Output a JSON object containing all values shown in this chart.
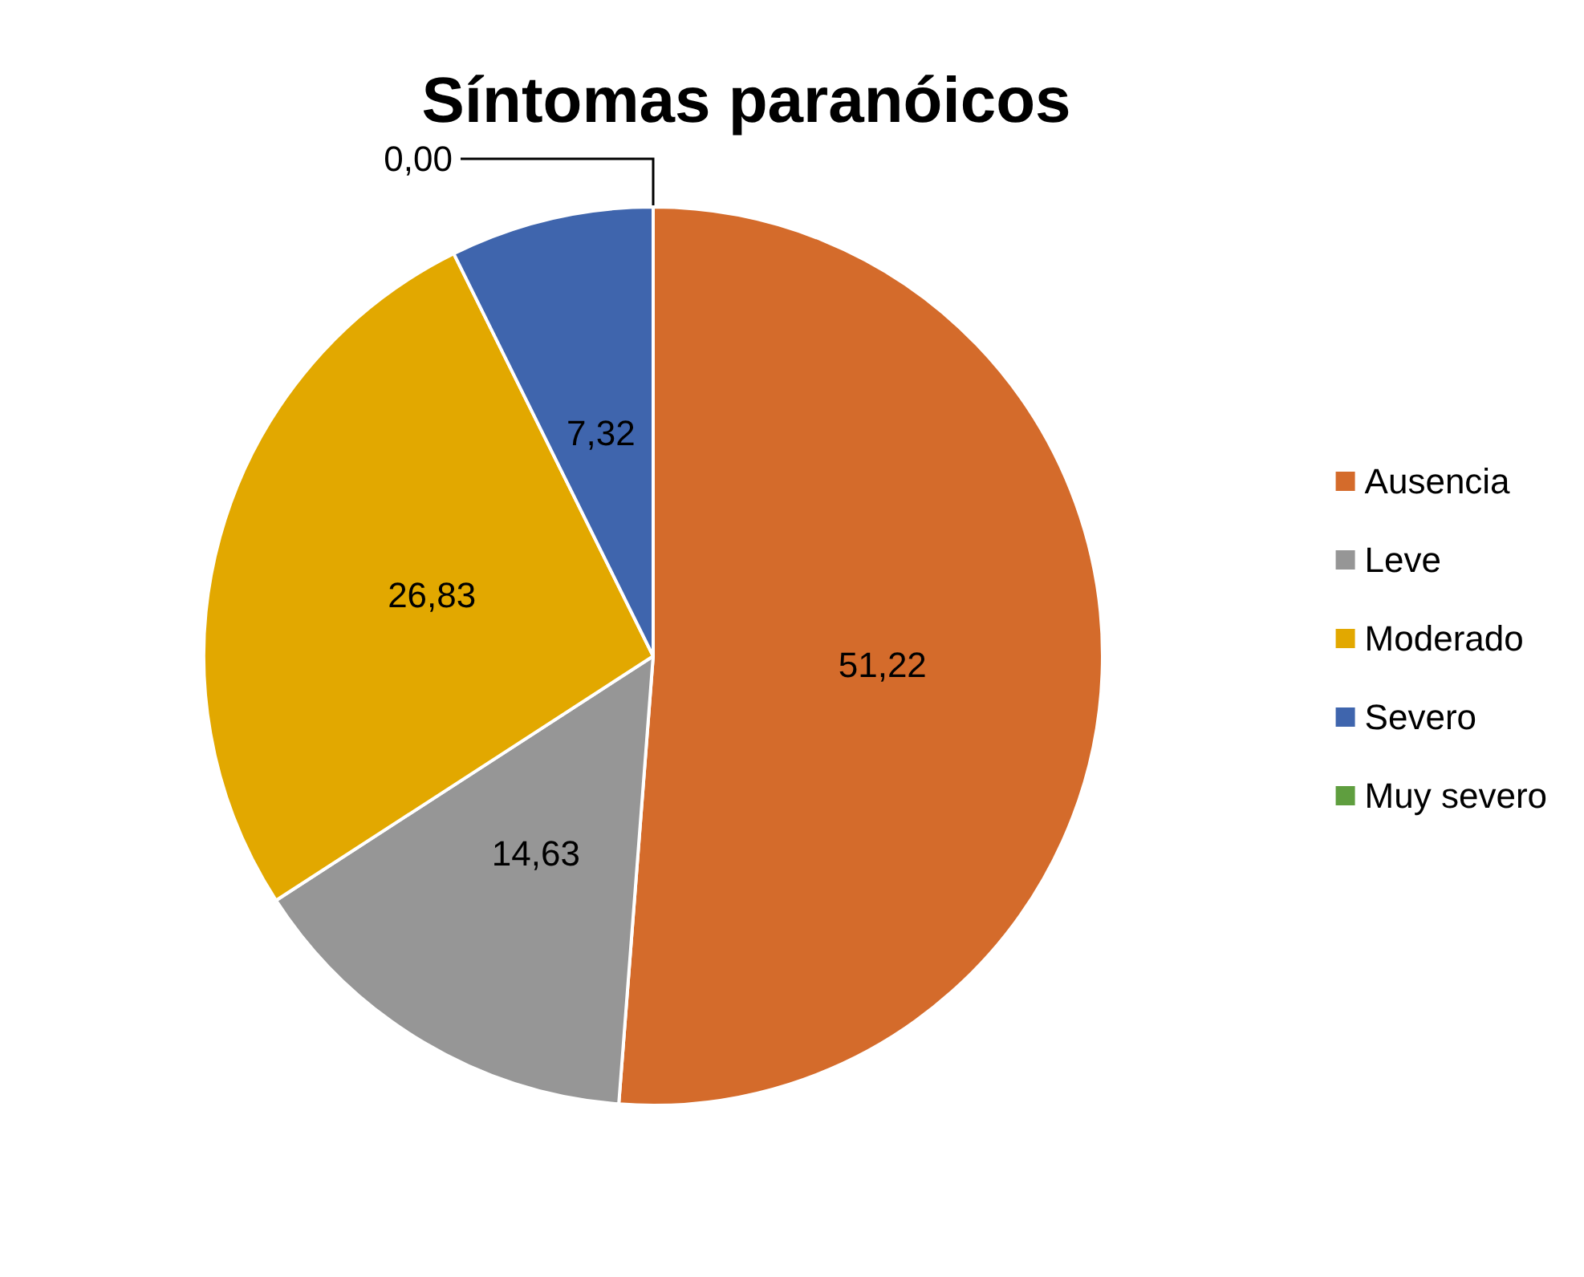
{
  "chart_data": {
    "type": "pie",
    "title": "Síntomas paranóicos",
    "categories": [
      "Ausencia",
      "Leve",
      "Moderado",
      "Severo",
      "Muy severo"
    ],
    "values": [
      51.22,
      14.63,
      26.83,
      7.32,
      0.0
    ],
    "value_labels": [
      "51,22",
      "14,63",
      "26,83",
      "7,32",
      "0,00"
    ],
    "colors": [
      "#d46b2b",
      "#969696",
      "#e2a800",
      "#3f65ad",
      "#5f9e3f"
    ],
    "legend": "right"
  }
}
